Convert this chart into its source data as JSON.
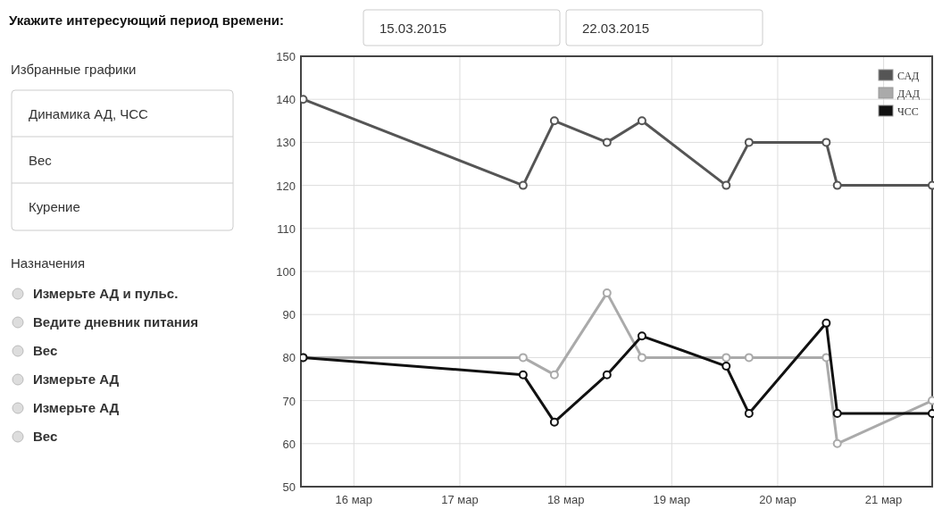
{
  "chart_data": {
    "type": "line",
    "title": "Укажите интересующий период времени:",
    "annotations": [
      "15.03.2015",
      "22.03.2015",
      "Избранные графики",
      "Динамика АД, ЧСС",
      "Вес",
      "Курение",
      "Назначения",
      "Измерьте АД и пульс.",
      "Ведите дневник питания",
      "Вес",
      "Измерьте АД",
      "Измерьте АД",
      "Вес"
    ],
    "x": [
      "2015-03-15T12:30",
      "2015-03-17T14:20",
      "2015-03-17T21:25",
      "2015-03-18T09:20",
      "2015-03-18T17:15",
      "2015-03-19T12:20",
      "2015-03-19T17:30",
      "2015-03-20T11:00",
      "2015-03-20T13:30",
      "2015-03-21T11:00"
    ],
    "series": [
      {
        "name": "САД",
        "color": "#555555",
        "values": [
          140,
          120,
          135,
          130,
          135,
          120,
          130,
          130,
          120,
          120
        ]
      },
      {
        "name": "ДАД",
        "color": "#aaaaaa",
        "values": [
          80,
          80,
          76,
          95,
          80,
          80,
          80,
          80,
          60,
          70
        ]
      },
      {
        "name": "ЧСС",
        "color": "#111111",
        "values": [
          80,
          76,
          65,
          76,
          85,
          78,
          67,
          88,
          67,
          67
        ]
      }
    ],
    "xlim": [
      "2015-03-15T12:00",
      "2015-03-21T11:00"
    ],
    "xticks": [
      {
        "value": "2015-03-16",
        "label": "16 мар"
      },
      {
        "value": "2015-03-17",
        "label": "17 мар"
      },
      {
        "value": "2015-03-18",
        "label": "18 мар"
      },
      {
        "value": "2015-03-19",
        "label": "19 мар"
      },
      {
        "value": "2015-03-20",
        "label": "20 мар"
      },
      {
        "value": "2015-03-21",
        "label": "21 мар"
      }
    ],
    "ylim": [
      50,
      150
    ],
    "yticks": [
      50,
      60,
      70,
      80,
      90,
      100,
      110,
      120,
      130,
      140,
      150
    ],
    "grid": true,
    "legend": "top right",
    "marker": "circle",
    "line_style": "solid"
  }
}
